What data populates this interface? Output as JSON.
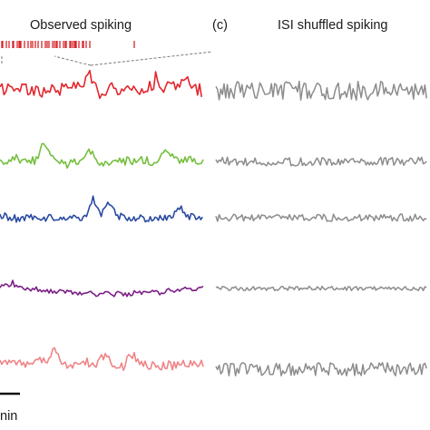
{
  "titles": {
    "left": "Observed spiking",
    "panel_label": "(c)",
    "right": "ISI shuffled spiking"
  },
  "scale_bar": {
    "label": "nin"
  },
  "colors": {
    "raster": "#d7262b",
    "shuffled": "#8c8c8c",
    "zoom_lines": "#7a7a7a",
    "scale_bar": "#111111"
  },
  "traces": [
    {
      "name": "trace-red",
      "color": "#e3262c"
    },
    {
      "name": "trace-green",
      "color": "#74bf3e"
    },
    {
      "name": "trace-blue",
      "color": "#2a4aa3"
    },
    {
      "name": "trace-purple",
      "color": "#7b1f86"
    },
    {
      "name": "trace-pink",
      "color": "#ef8487"
    }
  ]
}
